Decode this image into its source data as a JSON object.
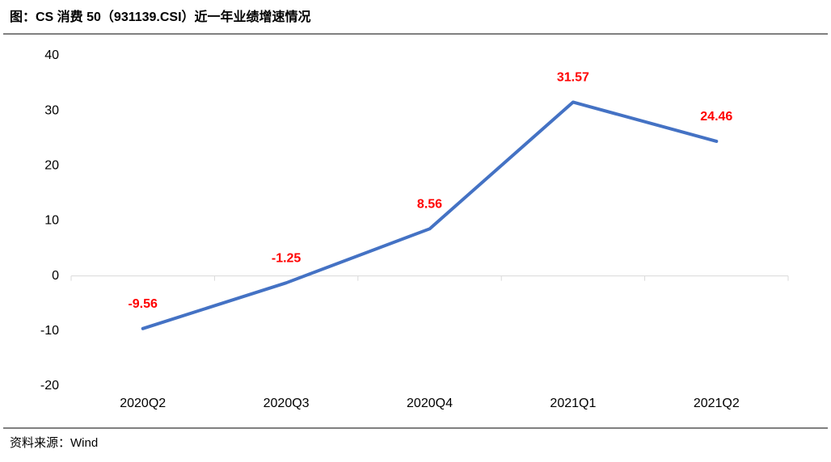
{
  "chart_data": {
    "type": "line",
    "title": "图：CS 消费 50（931139.CSI）近一年业绩增速情况",
    "source": "资料来源：Wind",
    "categories": [
      "2020Q2",
      "2020Q3",
      "2020Q4",
      "2021Q1",
      "2021Q2"
    ],
    "values": [
      -9.56,
      -1.25,
      8.56,
      31.57,
      24.46
    ],
    "color": "#4472c4",
    "label_color": "#ff0000",
    "ylim": [
      -20,
      40
    ],
    "yticks": [
      -20,
      -10,
      0,
      10,
      20,
      30,
      40
    ],
    "grid": false
  }
}
